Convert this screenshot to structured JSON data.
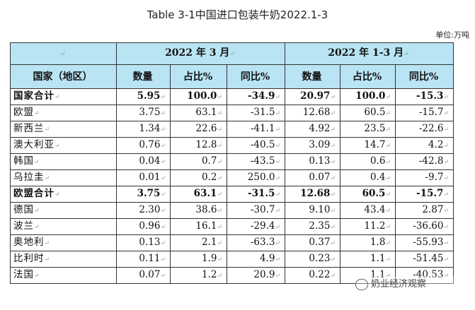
{
  "title": "Table 3-1中国进口包装牛奶2022.1-3",
  "unit": "单位:万吨",
  "header": {
    "group1": "2022 年 3 月",
    "group2": "2022 年 1-3 月",
    "col_country": "国家（地区）",
    "col_qty": "数量",
    "col_share": "占比%",
    "col_yoy": "同比%"
  },
  "rows": [
    {
      "name": "国家合计",
      "m_qty": "5.95",
      "m_share": "100.0",
      "m_yoy": "-34.9",
      "y_qty": "20.97",
      "y_share": "100.0",
      "y_yoy": "-15.3",
      "bold": true
    },
    {
      "name": "欧盟",
      "m_qty": "3.75",
      "m_share": "63.1",
      "m_yoy": "-31.5",
      "y_qty": "12.68",
      "y_share": "60.5",
      "y_yoy": "-15.7",
      "bold": false
    },
    {
      "name": "新西兰",
      "m_qty": "1.34",
      "m_share": "22.6",
      "m_yoy": "-41.1",
      "y_qty": "4.92",
      "y_share": "23.5",
      "y_yoy": "-22.6",
      "bold": false
    },
    {
      "name": "澳大利亚",
      "m_qty": "0.76",
      "m_share": "12.8",
      "m_yoy": "-40.5",
      "y_qty": "3.09",
      "y_share": "14.7",
      "y_yoy": "4.2",
      "bold": false
    },
    {
      "name": "韩国",
      "m_qty": "0.04",
      "m_share": "0.7",
      "m_yoy": "-43.5",
      "y_qty": "0.13",
      "y_share": "0.6",
      "y_yoy": "-42.8",
      "bold": false
    },
    {
      "name": "乌拉圭",
      "m_qty": "0.01",
      "m_share": "0.2",
      "m_yoy": "250.0",
      "y_qty": "0.07",
      "y_share": "0.4",
      "y_yoy": "-9.7",
      "bold": false
    },
    {
      "name": "欧盟合计",
      "m_qty": "3.75",
      "m_share": "63.1",
      "m_yoy": "-31.5",
      "y_qty": "12.68",
      "y_share": "60.5",
      "y_yoy": "-15.7",
      "bold": true
    },
    {
      "name": "德国",
      "m_qty": "2.30",
      "m_share": "38.6",
      "m_yoy": "-30.7",
      "y_qty": "9.10",
      "y_share": "43.4",
      "y_yoy": "2.87",
      "bold": false
    },
    {
      "name": "波兰",
      "m_qty": "0.96",
      "m_share": "16.1",
      "m_yoy": "-29.4",
      "y_qty": "2.35",
      "y_share": "11.2",
      "y_yoy": "-36.60",
      "bold": false
    },
    {
      "name": "奥地利",
      "m_qty": "0.13",
      "m_share": "2.1",
      "m_yoy": "-63.3",
      "y_qty": "0.37",
      "y_share": "1.8",
      "y_yoy": "-55.93",
      "bold": false
    },
    {
      "name": "比利时",
      "m_qty": "0.11",
      "m_share": "1.9",
      "m_yoy": "4.9",
      "y_qty": "0.23",
      "y_share": "1.1",
      "y_yoy": "-51.45",
      "bold": false
    },
    {
      "name": "法国",
      "m_qty": "0.07",
      "m_share": "1.2",
      "m_yoy": "20.9",
      "y_qty": "0.22",
      "y_share": "1.1",
      "y_yoy": "-40.53",
      "bold": false
    }
  ],
  "watermark": "奶业经济观察",
  "watermark_icon": "wechat-icon"
}
